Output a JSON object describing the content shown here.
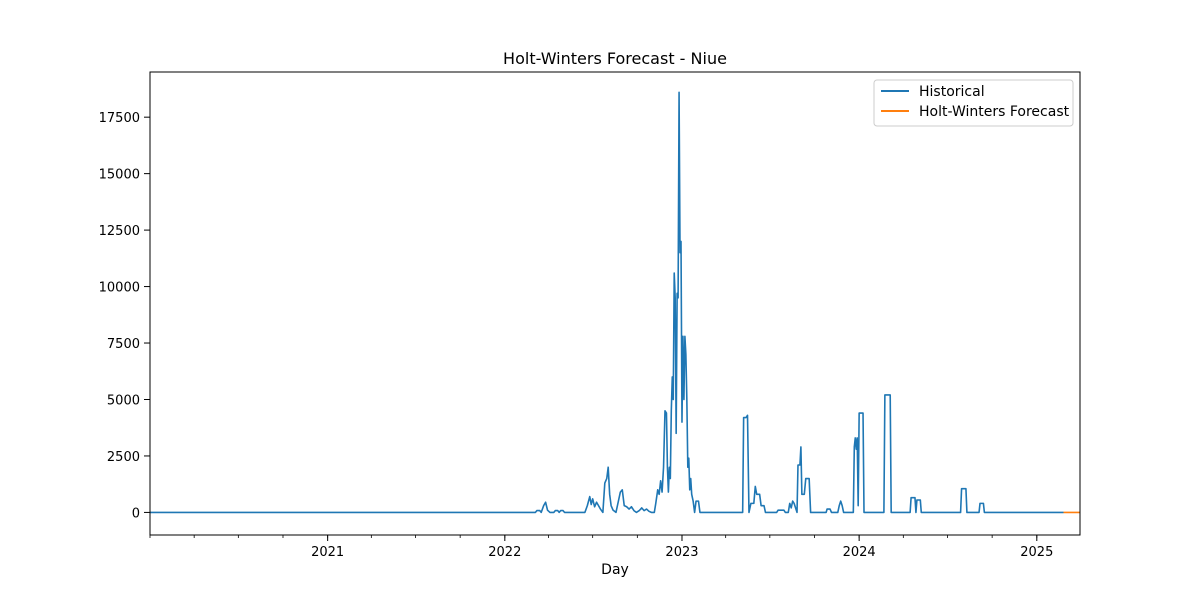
{
  "chart_data": {
    "type": "line",
    "title": "Holt-Winters Forecast - Niue",
    "xlabel": "Day",
    "ylabel": "",
    "xlim": [
      "2020-01-01",
      "2025-03-31"
    ],
    "ylim": [
      -1000,
      19500
    ],
    "x_ticks": [
      {
        "date": "2021-01-01",
        "label": "2021"
      },
      {
        "date": "2022-01-01",
        "label": "2022"
      },
      {
        "date": "2023-01-01",
        "label": "2023"
      },
      {
        "date": "2024-01-01",
        "label": "2024"
      },
      {
        "date": "2025-01-01",
        "label": "2025"
      }
    ],
    "y_ticks": [
      0,
      2500,
      5000,
      7500,
      10000,
      12500,
      15000,
      17500
    ],
    "legend": {
      "position": "top-right",
      "entries": [
        {
          "label": "Historical",
          "color": "#1f77b4"
        },
        {
          "label": "Holt-Winters Forecast",
          "color": "#ff7f0e"
        }
      ]
    },
    "grid": false,
    "series": [
      {
        "name": "Historical",
        "color": "#1f77b4",
        "points": [
          [
            "2020-01-01",
            0
          ],
          [
            "2022-03-05",
            0
          ],
          [
            "2022-03-08",
            80
          ],
          [
            "2022-03-14",
            80
          ],
          [
            "2022-03-17",
            0
          ],
          [
            "2022-03-22",
            300
          ],
          [
            "2022-03-26",
            450
          ],
          [
            "2022-03-30",
            100
          ],
          [
            "2022-04-04",
            0
          ],
          [
            "2022-04-12",
            0
          ],
          [
            "2022-04-15",
            80
          ],
          [
            "2022-04-20",
            80
          ],
          [
            "2022-04-23",
            0
          ],
          [
            "2022-04-26",
            80
          ],
          [
            "2022-05-01",
            80
          ],
          [
            "2022-05-04",
            0
          ],
          [
            "2022-06-15",
            0
          ],
          [
            "2022-06-20",
            300
          ],
          [
            "2022-06-25",
            700
          ],
          [
            "2022-06-28",
            350
          ],
          [
            "2022-07-01",
            600
          ],
          [
            "2022-07-05",
            250
          ],
          [
            "2022-07-09",
            450
          ],
          [
            "2022-07-13",
            300
          ],
          [
            "2022-07-17",
            150
          ],
          [
            "2022-07-22",
            0
          ],
          [
            "2022-07-26",
            1300
          ],
          [
            "2022-07-30",
            1500
          ],
          [
            "2022-08-02",
            2000
          ],
          [
            "2022-08-05",
            800
          ],
          [
            "2022-08-08",
            300
          ],
          [
            "2022-08-12",
            100
          ],
          [
            "2022-08-18",
            0
          ],
          [
            "2022-08-22",
            400
          ],
          [
            "2022-08-27",
            900
          ],
          [
            "2022-08-31",
            1000
          ],
          [
            "2022-09-04",
            300
          ],
          [
            "2022-09-09",
            250
          ],
          [
            "2022-09-14",
            150
          ],
          [
            "2022-09-19",
            250
          ],
          [
            "2022-09-24",
            80
          ],
          [
            "2022-09-29",
            0
          ],
          [
            "2022-10-05",
            80
          ],
          [
            "2022-10-10",
            200
          ],
          [
            "2022-10-15",
            80
          ],
          [
            "2022-10-20",
            150
          ],
          [
            "2022-10-25",
            50
          ],
          [
            "2022-10-30",
            0
          ],
          [
            "2022-11-05",
            0
          ],
          [
            "2022-11-08",
            400
          ],
          [
            "2022-11-12",
            1000
          ],
          [
            "2022-11-15",
            800
          ],
          [
            "2022-11-18",
            1400
          ],
          [
            "2022-11-21",
            900
          ],
          [
            "2022-11-24",
            2000
          ],
          [
            "2022-11-27",
            4500
          ],
          [
            "2022-11-30",
            4400
          ],
          [
            "2022-12-02",
            2000
          ],
          [
            "2022-12-04",
            900
          ],
          [
            "2022-12-06",
            2000
          ],
          [
            "2022-12-08",
            1500
          ],
          [
            "2022-12-10",
            4500
          ],
          [
            "2022-12-12",
            6000
          ],
          [
            "2022-12-14",
            5000
          ],
          [
            "2022-12-16",
            10600
          ],
          [
            "2022-12-18",
            9500
          ],
          [
            "2022-12-20",
            3500
          ],
          [
            "2022-12-22",
            9700
          ],
          [
            "2022-12-24",
            9500
          ],
          [
            "2022-12-26",
            18600
          ],
          [
            "2022-12-28",
            11500
          ],
          [
            "2022-12-30",
            12000
          ],
          [
            "2023-01-01",
            4000
          ],
          [
            "2023-01-03",
            7800
          ],
          [
            "2023-01-05",
            5000
          ],
          [
            "2023-01-07",
            7800
          ],
          [
            "2023-01-09",
            7000
          ],
          [
            "2023-01-11",
            5000
          ],
          [
            "2023-01-13",
            2000
          ],
          [
            "2023-01-15",
            2400
          ],
          [
            "2023-01-17",
            1000
          ],
          [
            "2023-01-19",
            1500
          ],
          [
            "2023-01-21",
            800
          ],
          [
            "2023-01-24",
            500
          ],
          [
            "2023-01-27",
            0
          ],
          [
            "2023-01-30",
            500
          ],
          [
            "2023-02-04",
            500
          ],
          [
            "2023-02-07",
            0
          ],
          [
            "2023-05-06",
            0
          ],
          [
            "2023-05-08",
            4200
          ],
          [
            "2023-05-13",
            4200
          ],
          [
            "2023-05-16",
            4300
          ],
          [
            "2023-05-19",
            0
          ],
          [
            "2023-05-23",
            400
          ],
          [
            "2023-05-29",
            400
          ],
          [
            "2023-06-01",
            1150
          ],
          [
            "2023-06-04",
            800
          ],
          [
            "2023-06-10",
            800
          ],
          [
            "2023-06-13",
            300
          ],
          [
            "2023-06-19",
            300
          ],
          [
            "2023-06-22",
            0
          ],
          [
            "2023-07-15",
            0
          ],
          [
            "2023-07-18",
            100
          ],
          [
            "2023-07-30",
            100
          ],
          [
            "2023-08-02",
            0
          ],
          [
            "2023-08-08",
            0
          ],
          [
            "2023-08-11",
            400
          ],
          [
            "2023-08-14",
            200
          ],
          [
            "2023-08-17",
            500
          ],
          [
            "2023-08-20",
            400
          ],
          [
            "2023-08-23",
            200
          ],
          [
            "2023-08-26",
            0
          ],
          [
            "2023-08-28",
            2100
          ],
          [
            "2023-09-01",
            2100
          ],
          [
            "2023-09-03",
            2900
          ],
          [
            "2023-09-05",
            800
          ],
          [
            "2023-09-10",
            800
          ],
          [
            "2023-09-13",
            1500
          ],
          [
            "2023-09-20",
            1500
          ],
          [
            "2023-09-23",
            0
          ],
          [
            "2023-10-25",
            0
          ],
          [
            "2023-10-27",
            150
          ],
          [
            "2023-11-02",
            150
          ],
          [
            "2023-11-05",
            0
          ],
          [
            "2023-11-18",
            0
          ],
          [
            "2023-11-21",
            300
          ],
          [
            "2023-11-24",
            500
          ],
          [
            "2023-11-27",
            300
          ],
          [
            "2023-11-30",
            0
          ],
          [
            "2023-12-20",
            0
          ],
          [
            "2023-12-22",
            2900
          ],
          [
            "2023-12-24",
            3300
          ],
          [
            "2023-12-26",
            2800
          ],
          [
            "2023-12-28",
            3300
          ],
          [
            "2023-12-30",
            300
          ],
          [
            "2024-01-01",
            4400
          ],
          [
            "2024-01-05",
            4400
          ],
          [
            "2024-01-09",
            4400
          ],
          [
            "2024-01-11",
            0
          ],
          [
            "2024-02-21",
            0
          ],
          [
            "2024-02-23",
            5200
          ],
          [
            "2024-03-01",
            5200
          ],
          [
            "2024-03-05",
            5200
          ],
          [
            "2024-03-07",
            0
          ],
          [
            "2024-04-15",
            0
          ],
          [
            "2024-04-17",
            650
          ],
          [
            "2024-04-25",
            650
          ],
          [
            "2024-04-27",
            0
          ],
          [
            "2024-04-29",
            550
          ],
          [
            "2024-05-06",
            550
          ],
          [
            "2024-05-08",
            0
          ],
          [
            "2024-07-28",
            0
          ],
          [
            "2024-07-30",
            1050
          ],
          [
            "2024-08-08",
            1050
          ],
          [
            "2024-08-10",
            0
          ],
          [
            "2024-09-04",
            0
          ],
          [
            "2024-09-06",
            400
          ],
          [
            "2024-09-13",
            400
          ],
          [
            "2024-09-15",
            0
          ],
          [
            "2025-02-25",
            0
          ]
        ]
      },
      {
        "name": "Holt-Winters Forecast",
        "color": "#ff7f0e",
        "points": [
          [
            "2025-02-25",
            0
          ],
          [
            "2025-03-31",
            0
          ]
        ]
      }
    ]
  }
}
